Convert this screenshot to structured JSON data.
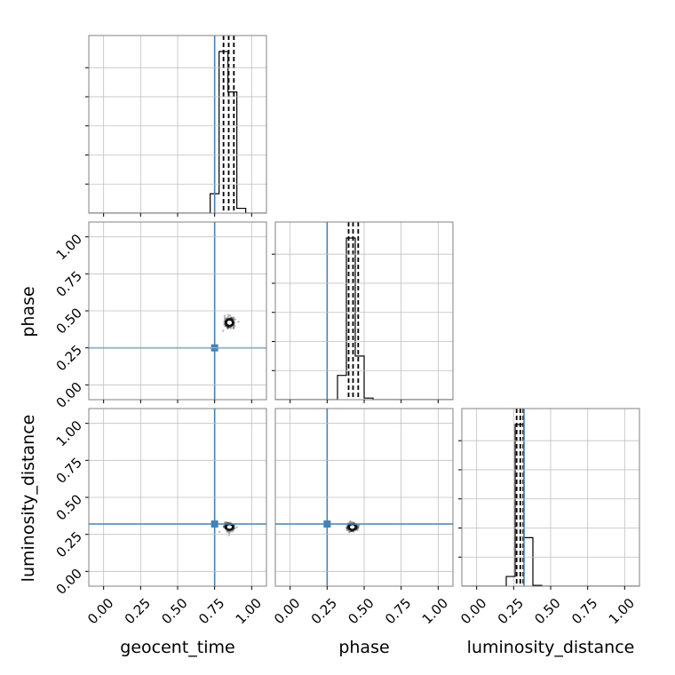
{
  "chart_data": {
    "type": "corner",
    "parameters": [
      "geocent_time",
      "phase",
      "luminosity_distance"
    ],
    "axis_ranges": {
      "geocent_time": [
        -0.1,
        1.1
      ],
      "phase": [
        -0.1,
        1.1
      ],
      "luminosity_distance": [
        -0.1,
        1.1
      ]
    },
    "tick_labels": [
      "0.00",
      "0.25",
      "0.50",
      "0.75",
      "1.00"
    ],
    "truth_values": {
      "geocent_time": 0.75,
      "phase": 0.25,
      "luminosity_distance": 0.32
    },
    "quantiles": {
      "geocent_time": [
        0.81,
        0.845,
        0.88
      ],
      "phase": [
        0.395,
        0.425,
        0.46
      ],
      "luminosity_distance": [
        0.27,
        0.295,
        0.315
      ]
    },
    "histograms": {
      "geocent_time": {
        "bins": [
          0.72,
          0.78,
          0.84,
          0.9,
          0.96
        ],
        "heights": [
          0.12,
          1.0,
          0.75,
          0.03
        ]
      },
      "phase": {
        "bins": [
          0.32,
          0.38,
          0.44,
          0.5,
          0.56
        ],
        "heights": [
          0.15,
          1.0,
          0.27,
          0.01
        ]
      },
      "luminosity_distance": {
        "bins": [
          0.2,
          0.26,
          0.32,
          0.38,
          0.44
        ],
        "heights": [
          0.06,
          1.0,
          0.3,
          0.005
        ]
      }
    },
    "density_2d": [
      {
        "x": "geocent_time",
        "y": "phase",
        "center": [
          0.85,
          0.42
        ],
        "spread": [
          0.035,
          0.035
        ]
      },
      {
        "x": "geocent_time",
        "y": "luminosity_distance",
        "center": [
          0.85,
          0.3
        ],
        "spread": [
          0.035,
          0.03
        ]
      },
      {
        "x": "phase",
        "y": "luminosity_distance",
        "center": [
          0.42,
          0.3
        ],
        "spread": [
          0.035,
          0.03
        ]
      }
    ],
    "grid": true,
    "truth_color": "#4682b4",
    "quantile_color": "#000000",
    "grid_color": "#c0c0c0"
  }
}
